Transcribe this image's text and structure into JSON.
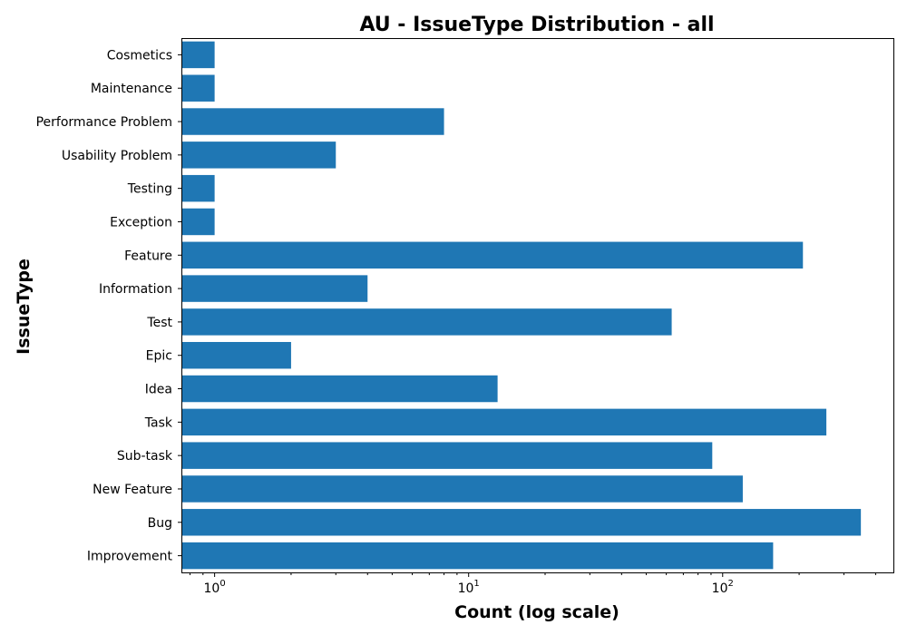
{
  "chart_data": {
    "type": "bar",
    "orientation": "horizontal",
    "title": "AU - IssueType Distribution - all",
    "xlabel": "Count (log scale)",
    "ylabel": "IssueType",
    "x_scale": "log",
    "xlim": [
      0.74,
      470
    ],
    "x_ticks": [
      {
        "value": 1,
        "base": "10",
        "exp": "0"
      },
      {
        "value": 10,
        "base": "10",
        "exp": "1"
      },
      {
        "value": 100,
        "base": "10",
        "exp": "2"
      }
    ],
    "categories": [
      "Improvement",
      "Bug",
      "New Feature",
      "Sub-task",
      "Task",
      "Idea",
      "Epic",
      "Test",
      "Information",
      "Feature",
      "Exception",
      "Testing",
      "Usability Problem",
      "Performance Problem",
      "Maintenance",
      "Cosmetics"
    ],
    "values": [
      158,
      350,
      120,
      91,
      256,
      13,
      2,
      63,
      4,
      207,
      1,
      1,
      3,
      8,
      1,
      1
    ],
    "bar_color": "#1f77b4",
    "grid": false
  }
}
